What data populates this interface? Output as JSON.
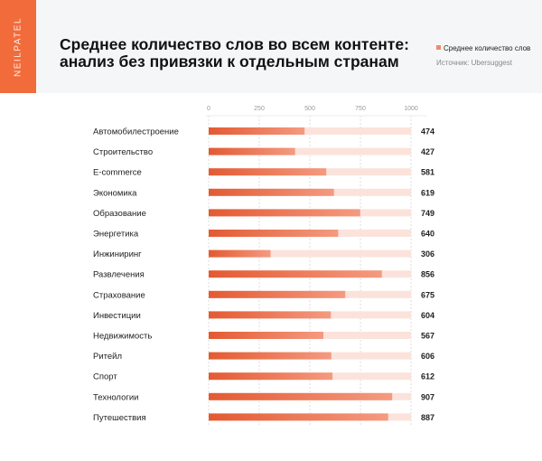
{
  "brand": "NEILPATEL",
  "chart_data": {
    "type": "bar",
    "orientation": "horizontal",
    "title": "Среднее количество слов во всем контенте: анализ без привязки к отдельным странам",
    "legend": {
      "entries": [
        "Среднее количество слов"
      ],
      "placement": "top-right"
    },
    "source": "Источник: Ubersuggest",
    "xlim": [
      0,
      1000
    ],
    "xticks": [
      "0",
      "250",
      "500",
      "750",
      "1000"
    ],
    "grid": true,
    "categories": [
      "Автомобилестроение",
      "Строительство",
      "E-commerce",
      "Экономика",
      "Образование",
      "Энергетика",
      "Инжиниринг",
      "Развлечения",
      "Страхование",
      "Инвестиции",
      "Недвижимость",
      "Ритейл",
      "Спорт",
      "Технологии",
      "Путешествия"
    ],
    "series": [
      {
        "name": "Среднее количество слов",
        "values": [
          474,
          427,
          581,
          619,
          749,
          640,
          306,
          856,
          675,
          604,
          567,
          606,
          612,
          907,
          887
        ]
      }
    ],
    "colors": {
      "bar": "#e8623a",
      "bar_light": "#f7a088",
      "track": "#fbe3dc",
      "accent": "#f26b3a"
    }
  }
}
